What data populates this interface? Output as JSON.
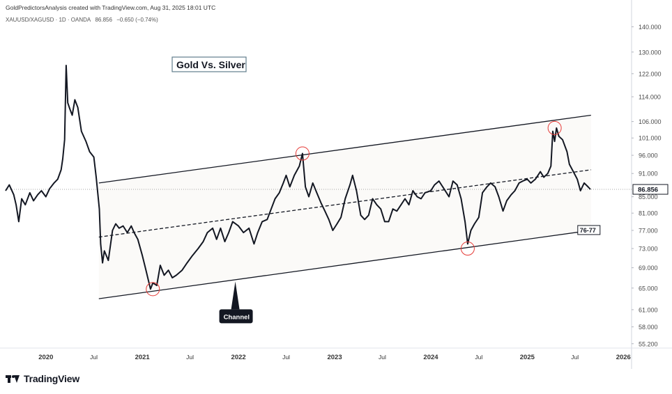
{
  "header": {
    "attribution": "GoldPredictorsAnalysis created with TradingView.com, Aug 31, 2025 18:01 UTC"
  },
  "symbol_bar": {
    "symbol": "XAUUSD/XAGUSD · 1D · OANDA",
    "last": "86.856",
    "change": "−0.650 (−0.74%)"
  },
  "footer": {
    "brand": "TradingView"
  },
  "colors": {
    "line": "#131722",
    "channel": "#131722",
    "marker": "#e53935",
    "grid": "#f0f3fa"
  },
  "chart_data": {
    "type": "line",
    "title": "Gold Vs. Silver",
    "series": [
      {
        "points": [
          [
            "2019-08-01",
            86.5
          ],
          [
            "2019-08-15",
            88.0
          ],
          [
            "2019-09-01",
            85.5
          ],
          [
            "2019-09-10",
            83.0
          ],
          [
            "2019-09-20",
            79.0
          ],
          [
            "2019-10-01",
            84.5
          ],
          [
            "2019-10-15",
            83.0
          ],
          [
            "2019-11-01",
            86.0
          ],
          [
            "2019-11-15",
            84.0
          ],
          [
            "2019-12-01",
            85.5
          ],
          [
            "2019-12-15",
            86.5
          ],
          [
            "2020-01-01",
            85.0
          ],
          [
            "2020-01-15",
            87.0
          ],
          [
            "2020-02-01",
            88.5
          ],
          [
            "2020-02-15",
            89.5
          ],
          [
            "2020-02-28",
            92.0
          ],
          [
            "2020-03-05",
            95.0
          ],
          [
            "2020-03-12",
            100.5
          ],
          [
            "2020-03-18",
            125.0
          ],
          [
            "2020-03-24",
            112.0
          ],
          [
            "2020-04-01",
            110.0
          ],
          [
            "2020-04-10",
            108.0
          ],
          [
            "2020-04-20",
            113.0
          ],
          [
            "2020-05-01",
            110.5
          ],
          [
            "2020-05-15",
            103.0
          ],
          [
            "2020-06-01",
            100.0
          ],
          [
            "2020-06-15",
            97.0
          ],
          [
            "2020-07-01",
            95.5
          ],
          [
            "2020-07-10",
            90.0
          ],
          [
            "2020-07-22",
            82.0
          ],
          [
            "2020-07-27",
            74.0
          ],
          [
            "2020-08-03",
            70.0
          ],
          [
            "2020-08-10",
            72.5
          ],
          [
            "2020-08-25",
            70.5
          ],
          [
            "2020-09-10",
            77.0
          ],
          [
            "2020-09-22",
            78.5
          ],
          [
            "2020-10-05",
            77.5
          ],
          [
            "2020-10-20",
            78.0
          ],
          [
            "2020-11-05",
            76.5
          ],
          [
            "2020-11-20",
            78.0
          ],
          [
            "2020-12-01",
            76.5
          ],
          [
            "2020-12-15",
            75.0
          ],
          [
            "2021-01-01",
            71.5
          ],
          [
            "2021-01-15",
            68.5
          ],
          [
            "2021-02-01",
            64.8
          ],
          [
            "2021-02-10",
            66.0
          ],
          [
            "2021-02-25",
            65.5
          ],
          [
            "2021-03-10",
            69.5
          ],
          [
            "2021-03-25",
            67.5
          ],
          [
            "2021-04-10",
            68.5
          ],
          [
            "2021-04-25",
            67.0
          ],
          [
            "2021-05-10",
            67.5
          ],
          [
            "2021-06-01",
            68.5
          ],
          [
            "2021-06-20",
            70.0
          ],
          [
            "2021-07-10",
            71.5
          ],
          [
            "2021-08-01",
            73.0
          ],
          [
            "2021-08-20",
            74.5
          ],
          [
            "2021-09-05",
            76.5
          ],
          [
            "2021-09-25",
            77.5
          ],
          [
            "2021-10-10",
            75.0
          ],
          [
            "2021-10-25",
            77.5
          ],
          [
            "2021-11-10",
            74.5
          ],
          [
            "2021-11-25",
            76.5
          ],
          [
            "2021-12-10",
            79.0
          ],
          [
            "2022-01-01",
            78.0
          ],
          [
            "2022-01-20",
            76.5
          ],
          [
            "2022-02-10",
            77.5
          ],
          [
            "2022-03-01",
            74.0
          ],
          [
            "2022-03-15",
            76.5
          ],
          [
            "2022-04-01",
            79.0
          ],
          [
            "2022-04-20",
            79.5
          ],
          [
            "2022-05-05",
            82.0
          ],
          [
            "2022-05-20",
            84.5
          ],
          [
            "2022-06-05",
            86.0
          ],
          [
            "2022-06-20",
            88.5
          ],
          [
            "2022-07-01",
            90.5
          ],
          [
            "2022-07-15",
            87.5
          ],
          [
            "2022-08-01",
            90.5
          ],
          [
            "2022-08-20",
            93.0
          ],
          [
            "2022-09-01",
            96.5
          ],
          [
            "2022-09-12",
            87.5
          ],
          [
            "2022-09-25",
            85.0
          ],
          [
            "2022-10-10",
            88.5
          ],
          [
            "2022-10-25",
            86.0
          ],
          [
            "2022-11-10",
            83.5
          ],
          [
            "2022-11-25",
            81.5
          ],
          [
            "2022-12-10",
            79.5
          ],
          [
            "2022-12-25",
            77.0
          ],
          [
            "2023-01-10",
            78.5
          ],
          [
            "2023-01-25",
            80.0
          ],
          [
            "2023-02-10",
            84.5
          ],
          [
            "2023-02-28",
            88.0
          ],
          [
            "2023-03-10",
            90.5
          ],
          [
            "2023-03-25",
            86.5
          ],
          [
            "2023-04-10",
            80.5
          ],
          [
            "2023-04-25",
            79.5
          ],
          [
            "2023-05-10",
            80.5
          ],
          [
            "2023-05-25",
            84.5
          ],
          [
            "2023-06-10",
            83.0
          ],
          [
            "2023-06-25",
            82.0
          ],
          [
            "2023-07-10",
            79.0
          ],
          [
            "2023-07-25",
            79.0
          ],
          [
            "2023-08-10",
            82.0
          ],
          [
            "2023-08-25",
            81.5
          ],
          [
            "2023-09-10",
            83.0
          ],
          [
            "2023-09-25",
            84.5
          ],
          [
            "2023-10-10",
            83.0
          ],
          [
            "2023-10-25",
            86.5
          ],
          [
            "2023-11-10",
            85.0
          ],
          [
            "2023-11-25",
            84.5
          ],
          [
            "2023-12-10",
            86.0
          ],
          [
            "2024-01-01",
            86.5
          ],
          [
            "2024-01-15",
            88.0
          ],
          [
            "2024-02-01",
            89.0
          ],
          [
            "2024-02-20",
            87.0
          ],
          [
            "2024-03-10",
            85.0
          ],
          [
            "2024-03-25",
            89.0
          ],
          [
            "2024-04-10",
            88.0
          ],
          [
            "2024-04-25",
            84.5
          ],
          [
            "2024-05-10",
            79.0
          ],
          [
            "2024-05-20",
            74.0
          ],
          [
            "2024-06-01",
            77.0
          ],
          [
            "2024-06-15",
            78.5
          ],
          [
            "2024-07-01",
            80.0
          ],
          [
            "2024-07-15",
            86.0
          ],
          [
            "2024-08-01",
            87.5
          ],
          [
            "2024-08-15",
            88.5
          ],
          [
            "2024-09-01",
            87.5
          ],
          [
            "2024-09-15",
            85.0
          ],
          [
            "2024-10-01",
            81.5
          ],
          [
            "2024-10-15",
            84.0
          ],
          [
            "2024-11-01",
            85.5
          ],
          [
            "2024-11-15",
            86.5
          ],
          [
            "2024-12-01",
            88.5
          ],
          [
            "2024-12-15",
            89.0
          ],
          [
            "2025-01-01",
            89.5
          ],
          [
            "2025-01-15",
            88.5
          ],
          [
            "2025-02-01",
            89.5
          ],
          [
            "2025-02-20",
            91.5
          ],
          [
            "2025-03-05",
            90.0
          ],
          [
            "2025-03-20",
            91.0
          ],
          [
            "2025-04-01",
            93.0
          ],
          [
            "2025-04-08",
            103.0
          ],
          [
            "2025-04-15",
            100.0
          ],
          [
            "2025-04-22",
            104.0
          ],
          [
            "2025-05-01",
            101.5
          ],
          [
            "2025-05-15",
            100.5
          ],
          [
            "2025-06-01",
            97.0
          ],
          [
            "2025-06-10",
            93.5
          ],
          [
            "2025-06-25",
            91.5
          ],
          [
            "2025-07-10",
            89.5
          ],
          [
            "2025-07-22",
            86.5
          ],
          [
            "2025-08-05",
            88.5
          ],
          [
            "2025-08-20",
            87.5
          ],
          [
            "2025-08-29",
            86.856
          ]
        ]
      }
    ],
    "y_axis": {
      "ticks": [
        "140.000",
        "130.000",
        "122.000",
        "114.000",
        "106.000",
        "101.000",
        "96.000",
        "91.000",
        "85.000",
        "81.000",
        "77.000",
        "73.000",
        "69.000",
        "65.000",
        "61.000",
        "58.000",
        "55.200"
      ],
      "scale": "log",
      "range": [
        54.5,
        146.0
      ]
    },
    "x_axis": {
      "range": [
        "2019-08-01",
        "2026-02-01"
      ],
      "ticks": [
        {
          "date": "2020-01-01",
          "label": "2020"
        },
        {
          "date": "2020-07-01",
          "label": "Jul"
        },
        {
          "date": "2021-01-01",
          "label": "2021"
        },
        {
          "date": "2021-07-01",
          "label": "Jul"
        },
        {
          "date": "2022-01-01",
          "label": "2022"
        },
        {
          "date": "2022-07-01",
          "label": "Jul"
        },
        {
          "date": "2023-01-01",
          "label": "2023"
        },
        {
          "date": "2023-07-01",
          "label": "Jul"
        },
        {
          "date": "2024-01-01",
          "label": "2024"
        },
        {
          "date": "2024-07-01",
          "label": "Jul"
        },
        {
          "date": "2025-01-01",
          "label": "2025"
        },
        {
          "date": "2025-07-01",
          "label": "Jul"
        },
        {
          "date": "2026-01-01",
          "label": "2026"
        }
      ]
    },
    "last_price_label": "86.856",
    "annotations": {
      "channel_upper": [
        [
          "2020-07-20",
          88.5
        ],
        [
          "2025-08-31",
          108.0
        ]
      ],
      "channel_mid": [
        [
          "2020-07-20",
          75.5
        ],
        [
          "2025-08-31",
          92.0
        ]
      ],
      "channel_lower": [
        [
          "2020-07-20",
          63.0
        ],
        [
          "2025-08-31",
          77.0
        ]
      ],
      "lower_channel_label": "76-77",
      "channel_callout": {
        "date": "2021-12-20",
        "value": 66.0,
        "text": "Channel"
      },
      "circles": [
        {
          "date": "2021-02-10",
          "value": 64.8
        },
        {
          "date": "2022-09-01",
          "value": 96.5
        },
        {
          "date": "2024-05-20",
          "value": 73.0
        },
        {
          "date": "2025-04-15",
          "value": 104.0
        }
      ]
    }
  }
}
